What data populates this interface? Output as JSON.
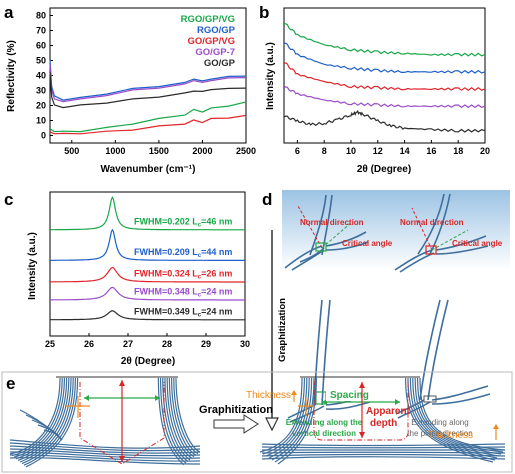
{
  "panels": {
    "a": {
      "letter": "a"
    },
    "b": {
      "letter": "b"
    },
    "c": {
      "letter": "c"
    },
    "d": {
      "letter": "d"
    },
    "e": {
      "letter": "e"
    }
  },
  "colors": {
    "green": "#1aa74a",
    "blue": "#1f5fc9",
    "red": "#e0262b",
    "purple": "#9a4cc9",
    "black": "#2b2b2b",
    "tube": "#3f6f9c",
    "orange": "#f08a1c",
    "dashred": "#d62626",
    "diagram_green": "#2ba84a"
  },
  "chart_data": [
    {
      "panel": "a",
      "type": "line",
      "xlabel": "Wavenumber (cm⁻¹)",
      "ylabel": "Reflectivity (%)",
      "xlim": [
        250,
        2500
      ],
      "ylim": [
        -5,
        85
      ],
      "xticks": [
        500,
        1000,
        1500,
        2000,
        2500
      ],
      "yticks": [
        0,
        10,
        20,
        30,
        40,
        50,
        60,
        70,
        80
      ],
      "legend": [
        "RGO/GP/VG",
        "RGO/GP",
        "GO/GP/VG",
        "GO/GP-7",
        "GO/GP"
      ],
      "series": [
        {
          "name": "RGO/GP/VG",
          "color": "#1aa74a",
          "x": [
            250,
            300,
            400,
            600,
            900,
            1200,
            1500,
            1800,
            1900,
            2000,
            2100,
            2300,
            2500
          ],
          "y": [
            4,
            3,
            2.5,
            3,
            5,
            8,
            11,
            14,
            17,
            16,
            18,
            20,
            22
          ]
        },
        {
          "name": "RGO/GP",
          "color": "#1f5fc9",
          "x": [
            250,
            270,
            300,
            400,
            600,
            900,
            1200,
            1500,
            1800,
            1900,
            2000,
            2100,
            2300,
            2500
          ],
          "y": [
            50,
            33,
            26,
            24,
            25,
            28,
            31,
            33,
            35,
            38,
            36,
            38,
            39,
            40
          ]
        },
        {
          "name": "GO/GP/VG",
          "color": "#e0262b",
          "x": [
            250,
            300,
            400,
            600,
            900,
            1200,
            1500,
            1800,
            1900,
            2000,
            2100,
            2300,
            2500
          ],
          "y": [
            2,
            1.5,
            1,
            1.5,
            2.5,
            4,
            6,
            8,
            10,
            9,
            11,
            12,
            13
          ]
        },
        {
          "name": "GO/GP-7",
          "color": "#9a4cc9",
          "x": [
            250,
            270,
            300,
            400,
            600,
            900,
            1200,
            1500,
            1800,
            1900,
            2000,
            2100,
            2300,
            2500
          ],
          "y": [
            47,
            31,
            24,
            23,
            24,
            27,
            30,
            32,
            34,
            37,
            35,
            37,
            38,
            39
          ]
        },
        {
          "name": "GO/GP",
          "color": "#2b2b2b",
          "x": [
            250,
            270,
            300,
            400,
            600,
            900,
            1200,
            1500,
            1800,
            1900,
            2000,
            2100,
            2300,
            2500
          ],
          "y": [
            42,
            26,
            20,
            19,
            20,
            22,
            24,
            26,
            28,
            30,
            29,
            31,
            31,
            32
          ]
        }
      ]
    },
    {
      "panel": "b",
      "type": "line",
      "xlabel": "2θ (Degree)",
      "ylabel": "Intensity (a.u.)",
      "xlim": [
        5,
        20
      ],
      "xticks": [
        6,
        8,
        10,
        12,
        14,
        16,
        18,
        20
      ],
      "series": [
        {
          "color": "#1aa74a",
          "x": [
            5,
            6,
            8,
            10,
            12,
            14,
            16,
            18,
            20
          ],
          "y": [
            98,
            88,
            80,
            76,
            74,
            73,
            72,
            72,
            72
          ]
        },
        {
          "color": "#1f5fc9",
          "x": [
            5,
            6,
            8,
            10,
            12,
            14,
            16,
            18,
            20
          ],
          "y": [
            82,
            72,
            64,
            61,
            59,
            58,
            58,
            58,
            58
          ]
        },
        {
          "color": "#e0262b",
          "x": [
            5,
            6,
            8,
            10,
            12,
            14,
            16,
            18,
            20
          ],
          "y": [
            66,
            56,
            50,
            46,
            45,
            44,
            44,
            44,
            44
          ]
        },
        {
          "color": "#9a4cc9",
          "x": [
            5,
            6,
            8,
            10,
            12,
            14,
            16,
            18,
            20
          ],
          "y": [
            46,
            40,
            35,
            32,
            31,
            30,
            30,
            30,
            30
          ]
        },
        {
          "color": "#2b2b2b",
          "x": [
            5,
            6,
            7,
            8,
            9,
            10,
            10.5,
            11,
            12,
            13,
            14,
            16,
            18,
            20
          ],
          "y": [
            22,
            18,
            15,
            16,
            19,
            23,
            25,
            23,
            18,
            14,
            12,
            11,
            10,
            10
          ]
        }
      ]
    },
    {
      "panel": "c",
      "type": "line",
      "xlabel": "2θ (Degree)",
      "ylabel": "Intensity (a.u.)",
      "xlim": [
        25,
        30
      ],
      "xticks": [
        25,
        26,
        27,
        28,
        29,
        30
      ],
      "annotations": [
        {
          "fwhm": "FWHM=0.202",
          "lc": "L",
          "sub": "c",
          "val": "=46 nm",
          "color": "#1aa74a"
        },
        {
          "fwhm": "FWHM=0.209",
          "lc": "L",
          "sub": "c",
          "val": "=44 nm",
          "color": "#1f5fc9"
        },
        {
          "fwhm": "FWHM=0.324",
          "lc": "L",
          "sub": "c",
          "val": "=26 nm",
          "color": "#e0262b"
        },
        {
          "fwhm": "FWHM=0.348",
          "lc": "L",
          "sub": "c",
          "val": "=24 nm",
          "color": "#9a4cc9"
        },
        {
          "fwhm": "FWHM=0.349",
          "lc": "L",
          "sub": "c",
          "val": "=24 nm",
          "color": "#2b2b2b"
        }
      ],
      "series": [
        {
          "color": "#1aa74a",
          "peak": 26.6,
          "height": 36,
          "width": 0.1,
          "base": 118
        },
        {
          "color": "#1f5fc9",
          "peak": 26.6,
          "height": 34,
          "width": 0.1,
          "base": 84
        },
        {
          "color": "#e0262b",
          "peak": 26.6,
          "height": 16,
          "width": 0.16,
          "base": 60
        },
        {
          "color": "#9a4cc9",
          "peak": 26.6,
          "height": 14,
          "width": 0.17,
          "base": 40
        },
        {
          "color": "#2b2b2b",
          "peak": 26.6,
          "height": 10,
          "width": 0.17,
          "base": 18
        }
      ]
    }
  ],
  "diagram_d": {
    "normal_direction": "Normal direction",
    "critical_angle": "Critical angle",
    "graphitization": "Graphitization",
    "left_caption_1": "Extending along the",
    "left_caption_2": "vertical direction",
    "right_caption_1": "Extending along",
    "right_caption_2": "the  plane direction"
  },
  "diagram_e": {
    "graphitization": "Graphitization",
    "thickness_left": "Thickness",
    "spacing": "Spacing",
    "apparent_1": "Apparent",
    "apparent_2": "depth",
    "thickness_right": "Thickness"
  }
}
